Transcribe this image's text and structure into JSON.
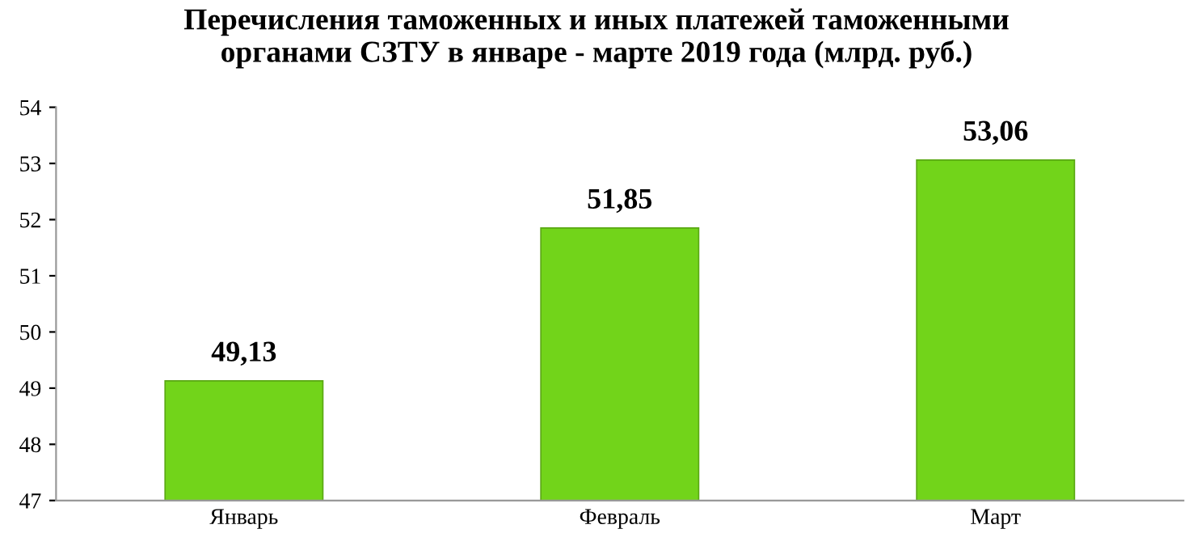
{
  "chart_data": {
    "type": "bar",
    "title": "Перечисления таможенных и иных платежей таможенными\nорганами СЗТУ в январе - марте 2019 года (млрд. руб.)",
    "categories": [
      "Январь",
      "Февраль",
      "Март"
    ],
    "values": [
      49.13,
      51.85,
      53.06
    ],
    "value_labels": [
      "49,13",
      "51,85",
      "53,06"
    ],
    "color": "#72d41a",
    "ylim": [
      47,
      54
    ],
    "yticks": [
      47,
      48,
      49,
      50,
      51,
      52,
      53,
      54
    ],
    "grid": false,
    "legend": false
  }
}
